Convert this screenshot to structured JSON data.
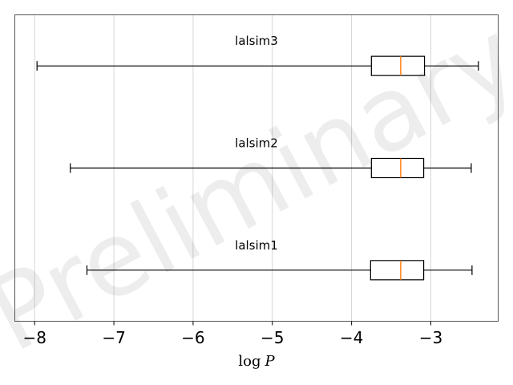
{
  "chart_data": {
    "type": "boxplot",
    "orientation": "horizontal",
    "xlabel_base": "log",
    "xlabel_var": "P",
    "xlim": [
      -8.25,
      -2.15
    ],
    "xticks": [
      -8,
      -7,
      -6,
      -5,
      -4,
      -3
    ],
    "xtick_labels": [
      "−8",
      "−7",
      "−6",
      "−5",
      "−4",
      "−3"
    ],
    "grid": "vertical",
    "watermark": "Preliminary",
    "box_color": "#000000",
    "median_color": "#ff7f0e",
    "boxes": [
      {
        "label": "lalsim3",
        "whisker_low": -7.97,
        "q1": -3.75,
        "median": -3.38,
        "q3": -3.08,
        "whisker_high": -2.4
      },
      {
        "label": "lalsim2",
        "whisker_low": -7.55,
        "q1": -3.75,
        "median": -3.38,
        "q3": -3.09,
        "whisker_high": -2.49
      },
      {
        "label": "lalsim1",
        "whisker_low": -7.34,
        "q1": -3.76,
        "median": -3.38,
        "q3": -3.09,
        "whisker_high": -2.48
      }
    ]
  }
}
